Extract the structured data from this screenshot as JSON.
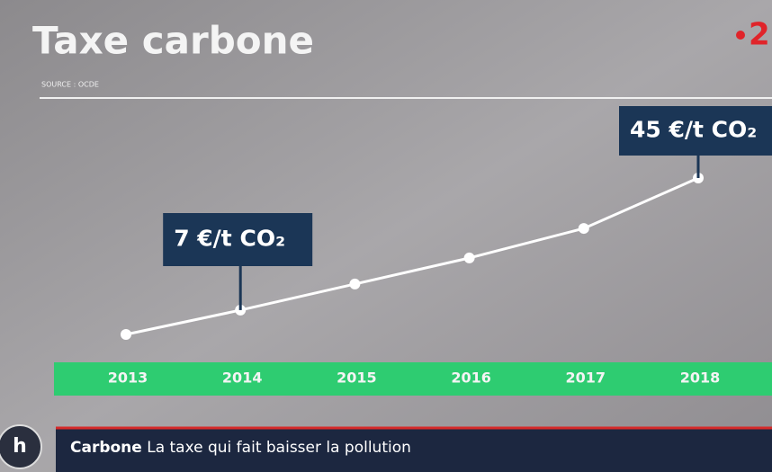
{
  "chart_data": {
    "type": "line",
    "title": "Taxe carbone",
    "subtitle": "SOURCE : OCDE",
    "channel": "2",
    "categories": [
      "2013",
      "2014",
      "2015",
      "2016",
      "2017",
      "2018"
    ],
    "values": [
      0,
      7,
      14.5,
      22,
      30.5,
      45
    ],
    "value_labels": [
      null,
      "7 €/t CO₂",
      null,
      null,
      null,
      "45 €/t CO₂"
    ],
    "color": "#ffffff",
    "band_color": "#2ecc71",
    "label_color": "#1b3656",
    "ticker": {
      "logo": "h",
      "topic": "Carbone",
      "headline": "La taxe qui fait baisser la pollution"
    }
  }
}
